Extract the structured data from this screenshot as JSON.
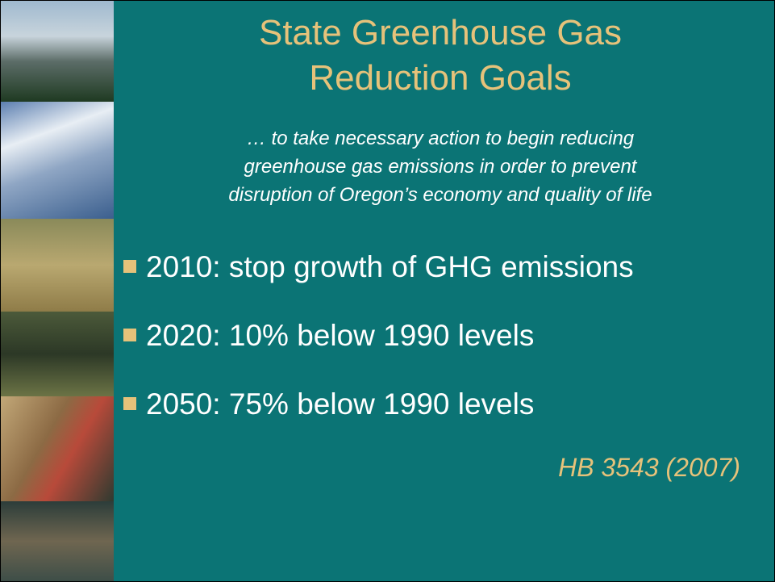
{
  "slide": {
    "title_lines": [
      "State Greenhouse Gas",
      "Reduction Goals"
    ],
    "subtitle_lines": [
      "… to take necessary action to begin reducing",
      "greenhouse gas emissions in order to prevent",
      "disruption of Oregon’s economy and quality of life"
    ],
    "bullets": [
      "2010: stop growth of GHG emissions",
      "2020: 10% below 1990 levels",
      "2050: 75% below 1990 levels"
    ],
    "citation": "HB 3543 (2007)"
  }
}
